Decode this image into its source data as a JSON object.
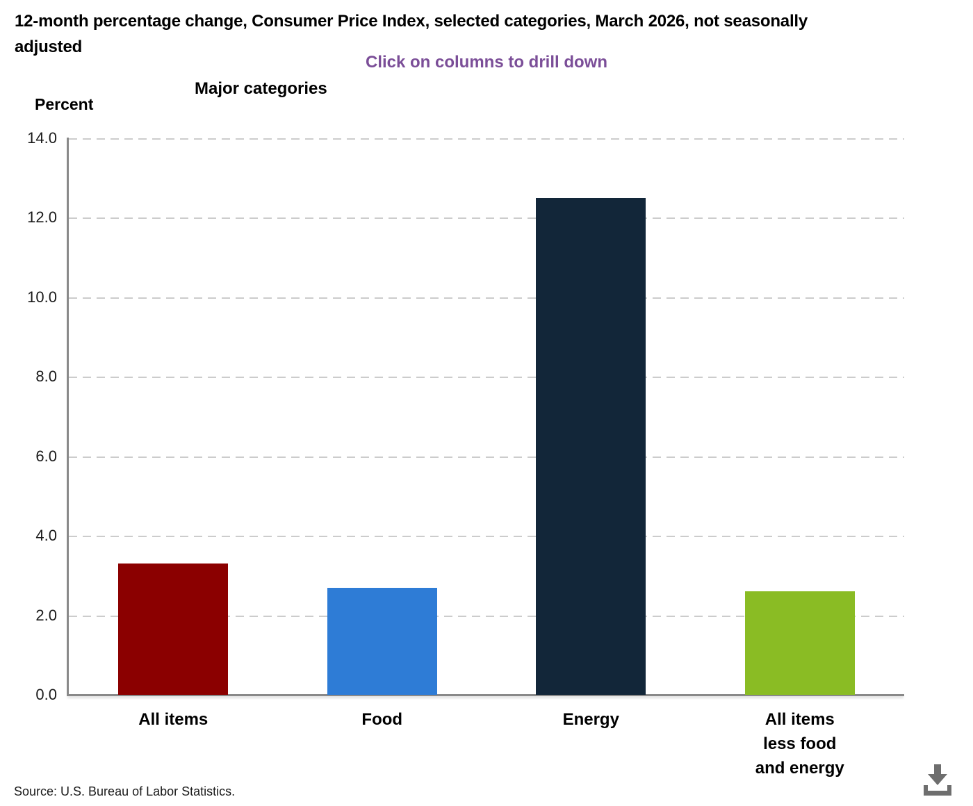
{
  "page": {
    "title": "12-month percentage change, Consumer Price Index, selected categories, March 2026, not seasonally adjusted",
    "drilldown_hint": "Click on columns to drill down",
    "source": "Source: U.S. Bureau of Labor Statistics."
  },
  "colors": {
    "hint_text": "#7B4E98",
    "axis_line": "#898989",
    "gridline": "#cccccc",
    "tick_text": "#1a1a1a",
    "download_icon": "#6E6E6E"
  },
  "icons": {
    "download": "download-icon"
  },
  "chart_data": {
    "type": "bar",
    "title": "12-month percentage change, Consumer Price Index, selected categories, March 2026, not seasonally adjusted",
    "xlabel": "Major categories",
    "ylabel": "Percent",
    "ylim": [
      0,
      14
    ],
    "ytick_step": 2,
    "ytick_labels": [
      "0.0",
      "2.0",
      "4.0",
      "6.0",
      "8.0",
      "10.0",
      "12.0",
      "14.0"
    ],
    "grid": "horizontal-dashed",
    "legend": "none",
    "categories": [
      "All items",
      "Food",
      "Energy",
      "All items less food and energy"
    ],
    "category_label_lines": [
      [
        "All items"
      ],
      [
        "Food"
      ],
      [
        "Energy"
      ],
      [
        "All items",
        "less food",
        "and energy"
      ]
    ],
    "values": [
      3.3,
      2.7,
      12.5,
      2.6
    ],
    "bar_colors": [
      "#8B0000",
      "#2E7CD6",
      "#122639",
      "#8ABC24"
    ]
  }
}
